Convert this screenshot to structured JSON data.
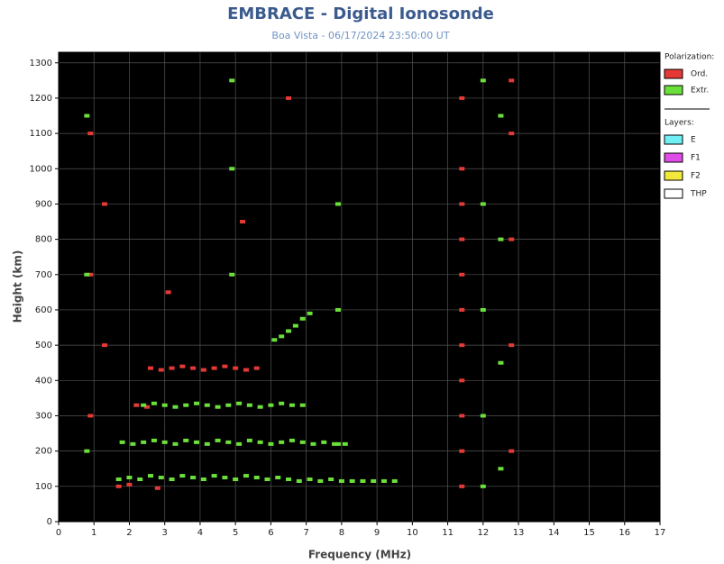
{
  "chart_data": {
    "type": "scatter",
    "title": "EMBRACE - Digital Ionosonde",
    "subtitle": "Boa Vista - 06/17/2024 23:50:00 UT",
    "x_label": "Frequency (MHz)",
    "y_label": "Height (km)",
    "xlim": [
      0,
      17
    ],
    "xticks": [
      0,
      1,
      2,
      3,
      4,
      5,
      6,
      7,
      8,
      9,
      10,
      11,
      12,
      13,
      14,
      15,
      16,
      17
    ],
    "ylim": [
      0,
      1330
    ],
    "yticks": [
      0,
      100,
      200,
      300,
      400,
      500,
      600,
      700,
      800,
      900,
      1000,
      1100,
      1200,
      1300
    ],
    "grid": true,
    "legend_title": "Polarization:",
    "series": [
      {
        "name": "Ord.",
        "color": "#e53935",
        "x": [
          2.6,
          2.9,
          3.2,
          3.5,
          3.8,
          4.1,
          4.4,
          4.7,
          5.0,
          5.3,
          5.6,
          2.2,
          2.5,
          1.7,
          2.0,
          2.8,
          11.4,
          11.4,
          11.4,
          11.4,
          11.4,
          11.4,
          11.4,
          11.4,
          11.4,
          11.4,
          11.4,
          12.8,
          12.8,
          12.8,
          12.8,
          12.8,
          0.9,
          0.9,
          0.9,
          1.3,
          1.3,
          6.5,
          5.2,
          3.1
        ],
        "y": [
          435,
          430,
          435,
          440,
          435,
          430,
          435,
          440,
          435,
          430,
          435,
          330,
          325,
          100,
          105,
          95,
          100,
          200,
          300,
          400,
          500,
          600,
          700,
          800,
          900,
          1000,
          1200,
          200,
          500,
          800,
          1100,
          1250,
          300,
          700,
          1100,
          500,
          900,
          1200,
          850,
          650
        ]
      },
      {
        "name": "Extr.",
        "color": "#6ce03a",
        "x": [
          1.7,
          2.0,
          2.3,
          2.6,
          2.9,
          3.2,
          3.5,
          3.8,
          4.1,
          4.4,
          4.7,
          5.0,
          5.3,
          5.6,
          5.9,
          6.2,
          6.5,
          6.8,
          7.1,
          7.4,
          7.7,
          8.0,
          8.3,
          8.6,
          8.9,
          9.2,
          9.5,
          1.8,
          2.1,
          2.4,
          2.7,
          3.0,
          3.3,
          3.6,
          3.9,
          4.2,
          4.5,
          4.8,
          5.1,
          5.4,
          5.7,
          6.0,
          6.3,
          6.6,
          6.9,
          7.2,
          7.5,
          7.8,
          8.1,
          2.4,
          2.7,
          3.0,
          3.3,
          3.6,
          3.9,
          4.2,
          4.5,
          4.8,
          5.1,
          5.4,
          5.7,
          6.0,
          6.3,
          6.6,
          6.9,
          6.1,
          6.3,
          6.5,
          6.7,
          6.9,
          7.1,
          12.0,
          12.0,
          12.0,
          12.0,
          12.0,
          12.5,
          12.5,
          12.5,
          12.5,
          4.9,
          4.9,
          4.9,
          7.9,
          7.9,
          7.9,
          0.8,
          0.8,
          0.8
        ],
        "y": [
          120,
          125,
          120,
          130,
          125,
          120,
          130,
          125,
          120,
          130,
          125,
          120,
          130,
          125,
          120,
          125,
          120,
          115,
          120,
          115,
          120,
          115,
          115,
          115,
          115,
          115,
          115,
          225,
          220,
          225,
          230,
          225,
          220,
          230,
          225,
          220,
          230,
          225,
          220,
          230,
          225,
          220,
          225,
          230,
          225,
          220,
          225,
          220,
          220,
          330,
          335,
          330,
          325,
          330,
          335,
          330,
          325,
          330,
          335,
          330,
          325,
          330,
          335,
          330,
          330,
          515,
          525,
          540,
          555,
          575,
          590,
          100,
          300,
          600,
          900,
          1250,
          150,
          450,
          800,
          1150,
          1250,
          1000,
          700,
          220,
          600,
          900,
          200,
          700,
          1150
        ]
      }
    ],
    "layers_title": "Layers:",
    "layers": [
      {
        "name": "E",
        "color": "#6ef0f5"
      },
      {
        "name": "F1",
        "color": "#e04ce8"
      },
      {
        "name": "F2",
        "color": "#f2e83a"
      },
      {
        "name": "THP",
        "color": "#ffffff"
      }
    ]
  }
}
